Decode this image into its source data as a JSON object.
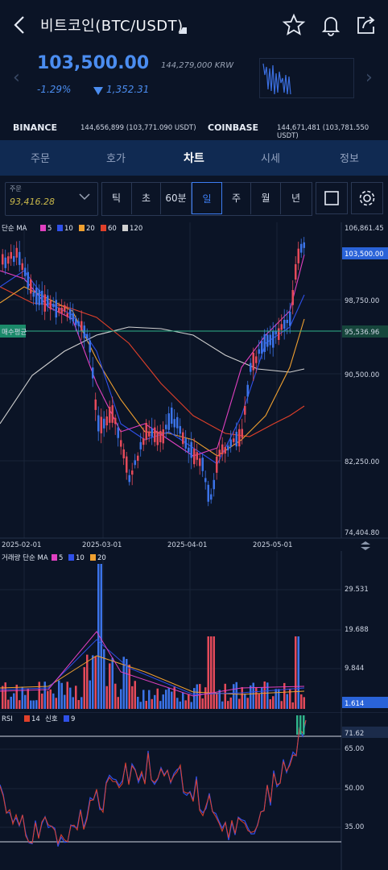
{
  "header": {
    "title": "비트코인(BTC/USDT)",
    "back_icon": "chevron-left-icon",
    "icons": [
      "star-icon",
      "bell-icon",
      "share-icon"
    ]
  },
  "price": {
    "main": "103,500.00",
    "krw": "144,279,000 KRW",
    "change_pct": "-1.29%",
    "change_value": "1,352.31",
    "color": "#4b8df0"
  },
  "exchanges": [
    {
      "name": "BINANCE",
      "value": "144,656,899 (103,771.090 USDT)"
    },
    {
      "name": "COINBASE",
      "value": "144,671,481 (103,781.550 USDT)"
    }
  ],
  "tabs": [
    {
      "label": "주문",
      "active": false
    },
    {
      "label": "호가",
      "active": false
    },
    {
      "label": "차트",
      "active": true
    },
    {
      "label": "시세",
      "active": false
    },
    {
      "label": "정보",
      "active": false
    }
  ],
  "toolbar": {
    "order_label": "주문",
    "order_value": "93,416.28",
    "periods": [
      "틱",
      "초",
      "60분",
      "일",
      "주",
      "월",
      "년"
    ],
    "selected_period": "일"
  },
  "price_chart": {
    "legend": {
      "label": "단순 MA",
      "items": [
        {
          "name": "5",
          "color": "#e040c0"
        },
        {
          "name": "10",
          "color": "#2f50e8"
        },
        {
          "name": "20",
          "color": "#f0a030"
        },
        {
          "name": "60",
          "color": "#e0402a"
        },
        {
          "name": "120",
          "color": "#d0d0d0"
        }
      ]
    },
    "y_ticks": [
      "106,861.45",
      "98,750.00",
      "90,500.00",
      "82,250.00",
      "74,404.80"
    ],
    "current_price_tag": "103,500.00",
    "avg_buy_label": "매수평균",
    "avg_buy_value": "95,536.96",
    "x_ticks": [
      "2025-02-01",
      "2025-03-01",
      "2025-04-01",
      "2025-05-01"
    ]
  },
  "volume_chart": {
    "legend": {
      "label": "거래량 단순 MA",
      "items": [
        {
          "name": "5",
          "color": "#e040c0"
        },
        {
          "name": "10",
          "color": "#2f50e8"
        },
        {
          "name": "20",
          "color": "#f0a030"
        }
      ]
    },
    "y_ticks": [
      "29.531",
      "19.688",
      "9.844"
    ],
    "current_tag": "1.614"
  },
  "rsi_chart": {
    "legend": {
      "label": "RSI",
      "items": [
        {
          "name": "14",
          "color": "#e0402a"
        },
        {
          "name": "신호",
          "color": ""
        },
        {
          "name": "9",
          "color": "#2f50e8"
        }
      ]
    },
    "y_ticks": [
      "65.00",
      "50.00",
      "35.00"
    ],
    "current_tag": "71.62"
  }
}
